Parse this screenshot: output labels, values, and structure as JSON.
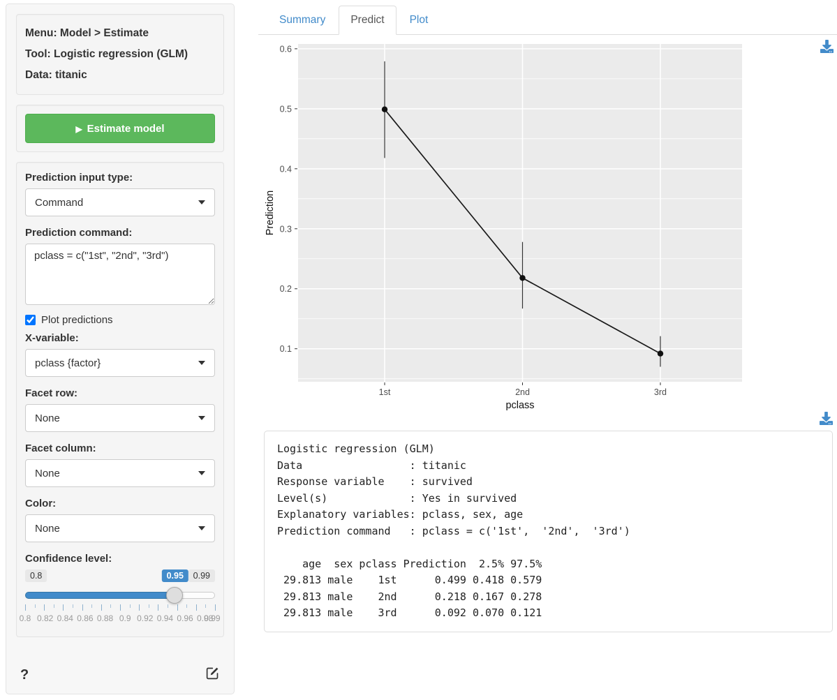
{
  "colors": {
    "accent": "#428bca",
    "success_green": "#5cb85c",
    "panel_gray": "#ebebeb",
    "well_bg": "#f5f5f5"
  },
  "sidebar": {
    "header": {
      "menu": "Menu: Model > Estimate",
      "tool": "Tool: Logistic regression (GLM)",
      "data": "Data: titanic"
    },
    "estimate_button": {
      "label": "Estimate model",
      "icon": "play-icon"
    },
    "controls": {
      "input_type": {
        "label": "Prediction input type:",
        "value": "Command"
      },
      "command": {
        "label": "Prediction command:",
        "value": "pclass = c(\"1st\", \"2nd\", \"3rd\")"
      },
      "plot_predictions": {
        "label": "Plot predictions",
        "checked": true
      },
      "x_variable": {
        "label": "X-variable:",
        "value": "pclass {factor}"
      },
      "facet_row": {
        "label": "Facet row:",
        "value": "None"
      },
      "facet_column": {
        "label": "Facet column:",
        "value": "None"
      },
      "color": {
        "label": "Color:",
        "value": "None"
      },
      "confidence": {
        "label": "Confidence level:",
        "min": 0.8,
        "max": 0.99,
        "value": 0.95,
        "min_label": "0.8",
        "max_label": "0.99",
        "value_label": "0.95",
        "grid_labels": [
          "0.8",
          "0.82",
          "0.84",
          "0.86",
          "0.88",
          "0.9",
          "0.92",
          "0.94",
          "0.96",
          "0.98",
          "0.99"
        ]
      }
    },
    "footer": {
      "help_label": "?",
      "edit_icon": "pencil-square-icon"
    }
  },
  "tabs": [
    {
      "label": "Summary",
      "active": false
    },
    {
      "label": "Predict",
      "active": true
    },
    {
      "label": "Plot",
      "active": false
    }
  ],
  "chart_data": {
    "type": "line",
    "title": "",
    "xlabel": "pclass",
    "ylabel": "Prediction",
    "categories": [
      "1st",
      "2nd",
      "3rd"
    ],
    "series": [
      {
        "name": "Prediction",
        "values": [
          0.499,
          0.218,
          0.092
        ],
        "ci_low": [
          0.418,
          0.167,
          0.07
        ],
        "ci_high": [
          0.579,
          0.278,
          0.121
        ]
      }
    ],
    "ylim": [
      0.045,
      0.608
    ],
    "yticks": [
      0.1,
      0.2,
      0.3,
      0.4,
      0.5,
      0.6
    ],
    "grid": true,
    "legend": "none",
    "panel_bg": "#ebebeb"
  },
  "output": {
    "lines": [
      "Logistic regression (GLM)",
      "Data                 : titanic",
      "Response variable    : survived",
      "Level(s)             : Yes in survived",
      "Explanatory variables: pclass, sex, age",
      "Prediction command   : pclass = c('1st',  '2nd',  '3rd')",
      "",
      "    age  sex pclass Prediction  2.5% 97.5%",
      " 29.813 male    1st      0.499 0.418 0.579",
      " 29.813 male    2nd      0.218 0.167 0.278",
      " 29.813 male    3rd      0.092 0.070 0.121"
    ]
  }
}
